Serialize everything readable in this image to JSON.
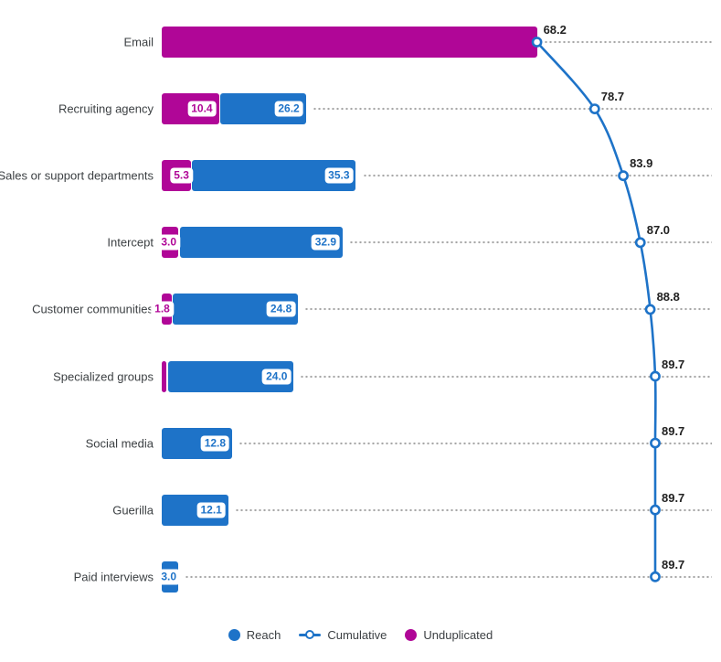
{
  "chart_data": {
    "type": "bar",
    "orientation": "horizontal",
    "title": "",
    "xlabel": "",
    "ylabel": "",
    "xlim": [
      0,
      100
    ],
    "grid": "dotted-row-leader-lines",
    "legend_position": "bottom",
    "categories": [
      "Email",
      "Recruiting agency",
      "Sales or support departments",
      "Intercept",
      "Customer communities",
      "Specialized groups",
      "Social media",
      "Guerilla",
      "Paid interviews"
    ],
    "series": [
      {
        "name": "Unduplicated",
        "type": "bar",
        "color": "#b00697",
        "values": [
          68.2,
          10.4,
          5.3,
          3.0,
          1.8,
          0.9,
          0,
          0,
          0
        ],
        "labels": [
          "",
          "10.4",
          "5.3",
          "3.0",
          "1.8",
          "",
          "",
          "",
          ""
        ]
      },
      {
        "name": "Reach",
        "type": "bar",
        "color": "#1e73c8",
        "values": [
          null,
          26.2,
          35.3,
          32.9,
          24.8,
          24.0,
          12.8,
          12.1,
          3.0
        ],
        "labels": [
          "",
          "26.2",
          "35.3",
          "32.9",
          "24.8",
          "24.0",
          "12.8",
          "12.1",
          "3.0"
        ]
      },
      {
        "name": "Cumulative",
        "type": "line",
        "color": "#1e73c8",
        "marker": "open-circle",
        "values": [
          68.2,
          78.7,
          83.9,
          87.0,
          88.8,
          89.7,
          89.7,
          89.7,
          89.7
        ],
        "labels": [
          "68.2",
          "78.7",
          "83.9",
          "87.0",
          "88.8",
          "89.7",
          "89.7",
          "89.7",
          "89.7"
        ]
      }
    ],
    "legend": [
      {
        "label": "Reach",
        "swatch": "filled-circle",
        "color": "#1e73c8"
      },
      {
        "label": "Cumulative",
        "swatch": "line-with-open-circle",
        "color": "#1e73c8"
      },
      {
        "label": "Unduplicated",
        "swatch": "filled-circle",
        "color": "#b00697"
      }
    ],
    "colors": {
      "reach_blue": "#1e73c8",
      "unduplicated_magenta": "#b00697",
      "leader_dots": "#a6a6a6",
      "cumulative_value_text": "#212121",
      "category_text": "#3c4043",
      "value_badge_background": "#ffffff"
    }
  }
}
